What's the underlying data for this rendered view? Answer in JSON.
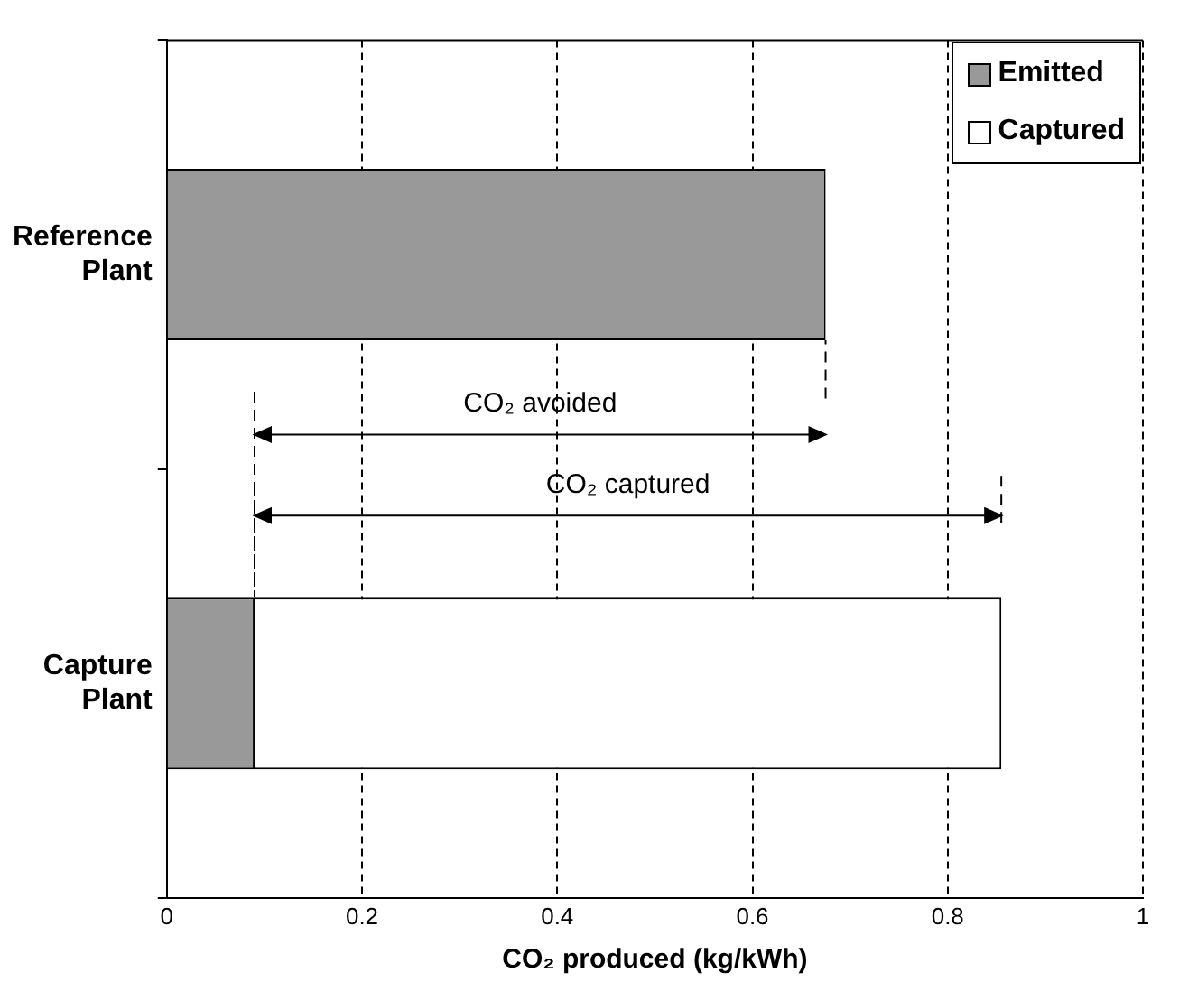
{
  "chart_data": {
    "type": "bar",
    "orientation": "horizontal",
    "stacked": true,
    "xlabel": "CO₂ produced (kg/kWh)",
    "categories": [
      "Reference Plant",
      "Capture Plant"
    ],
    "series": [
      {
        "name": "Emitted",
        "color": "#999999",
        "values": [
          0.675,
          0.09
        ]
      },
      {
        "name": "Captured",
        "color": "#ffffff",
        "values": [
          0,
          0.765
        ]
      }
    ],
    "xlim": [
      0,
      1
    ],
    "xticks": [
      0,
      0.2,
      0.4,
      0.6,
      0.8,
      1
    ],
    "grid": "x",
    "legend": "top right",
    "annotations": [
      "CO₂ avoided",
      "CO₂ captured"
    ]
  }
}
